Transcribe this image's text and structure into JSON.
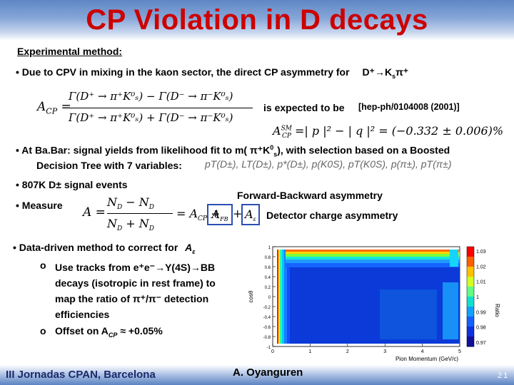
{
  "title": "CP Violation in D decays",
  "experimental": "Experimental method:",
  "bullet1_text": "Due to CPV in mixing in the kaon sector,  the direct CP asymmetry for",
  "bullet1_decay": "D⁺→K",
  "bullet1_decay_sub": "s",
  "bullet1_decay_end": "π⁺",
  "acp_lhs": "A",
  "acp_lhs_sub": "CP",
  "acp_num": "Γ(D⁺ → π⁺K⁰ₛ) − Γ(D⁻ → π⁻K⁰ₛ)",
  "acp_den": "Γ(D⁺ → π⁺K⁰ₛ) + Γ(D⁻ → π⁻K⁰ₛ)",
  "expected": "is expected to be",
  "reference": "[hep-ph/0104008 (2001)]",
  "sm_formula": "A",
  "sm_sup": "SM",
  "sm_sub": "CP",
  "sm_rest": "=| p |² − | q |² = (−0.332 ± 0.006)%",
  "bullet2_a": "At Ba.Bar: signal yields from likelihood fit to m( π⁺K",
  "bullet2_b": "), with selection based on a Boosted",
  "bullet2_line2": "Decision Tree with 7 variables:",
  "variables": "pT(D±), LT(D±), p*(D±), p(K0S), pT(K0S), p(π±), pT(π±)",
  "bullet3": "807K D± signal events",
  "fb_label": "Forward-Backward asymmetry",
  "bullet4": "Measure",
  "measure_eq": "A =",
  "measure_num": "N",
  "measure_num_b": " − N",
  "measure_den": "N",
  "measure_den_b": " + N",
  "measure_rest": "= A",
  "afb": "A",
  "afb_sub": "FB",
  "aeps": "A",
  "aeps_sub": "ε",
  "det_label": "Detector charge asymmetry",
  "data_driven": "Data-driven method to correct for",
  "data_driven_sym": "A",
  "data_driven_sub": "ε",
  "sub1_lines": [
    "Use tracks from e⁺e⁻→Υ(4S)→BB",
    "decays (isotropic in rest frame) to",
    "map the ratio of π⁺/π⁻ detection",
    "efficiencies"
  ],
  "sub2": "Offset on A",
  "sub2_sub": "CP",
  "sub2_end": " ≈ +0.05%",
  "plot": {
    "ylabel": "cosθ",
    "xlabel": "Pion Momentum (GeV/c)",
    "xticks": [
      "0",
      "1",
      "2",
      "3",
      "4",
      "5"
    ],
    "yticks": [
      "1",
      "0.8",
      "0.6",
      "0.4",
      "0.2",
      "0",
      "-0.2",
      "-0.4",
      "-0.6",
      "-0.8",
      "-1"
    ],
    "scale_ticks": [
      "1.03",
      "1.02",
      "1.01",
      "1",
      "0.99",
      "0.98",
      "0.97"
    ],
    "scale_label": "Ratio"
  },
  "footer_left": "III Jornadas CPAN, Barcelona",
  "footer_center": "A. Oyanguren",
  "footer_page": "21"
}
